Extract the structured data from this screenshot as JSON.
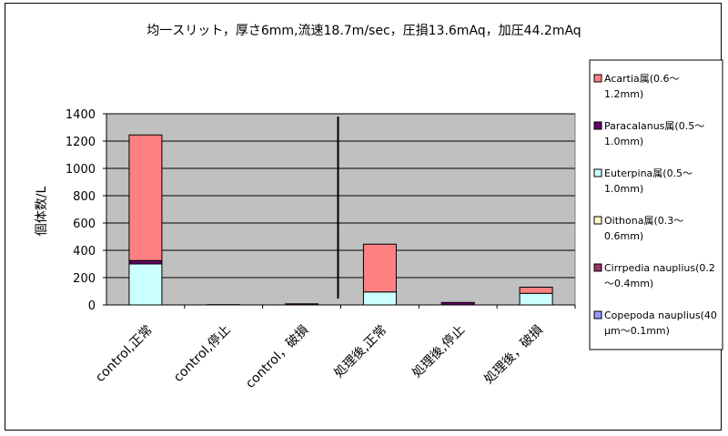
{
  "chart_data": {
    "type": "bar",
    "stacked": true,
    "title": "均一スリット，厚さ6mm,流速18.7m/sec，圧損13.6mAq，加圧44.2mAq",
    "ylabel": "個体数/L",
    "xlabel": "",
    "ylim": [
      0,
      1400
    ],
    "yticks": [
      0,
      200,
      400,
      600,
      800,
      1000,
      1200,
      1400
    ],
    "categories": [
      "control,正常",
      "control,停止",
      "control，破損",
      "処理後,正常",
      "処理後,停止",
      "処理後，破損"
    ],
    "series": [
      {
        "name": "Acartia属(0.6～1.2mm)",
        "color": "#9999ff",
        "values": [
          0,
          0,
          0,
          0,
          0,
          0
        ]
      },
      {
        "name": "Paracalanus属(0.5～1.0mm)",
        "color": "#993366",
        "values": [
          0,
          0,
          0,
          0,
          0,
          0
        ]
      },
      {
        "name": "Euterpina属(0.5～1.0mm)",
        "color": "#ffffcc",
        "values": [
          0,
          0,
          0,
          0,
          0,
          0
        ]
      },
      {
        "name": "Oithona属(0.3～0.6mm)",
        "color": "#ccffff",
        "values": [
          300,
          0,
          0,
          95,
          0,
          85
        ]
      },
      {
        "name": "Cirrpedia nauplius(0.2～0.4mm)",
        "color": "#660066",
        "values": [
          25,
          2,
          8,
          0,
          18,
          0
        ]
      },
      {
        "name": "Copepoda nauplius(40μm～0.1mm)",
        "color": "#ff8080",
        "values": [
          920,
          0,
          0,
          350,
          0,
          45
        ]
      }
    ],
    "legend_lines": [
      [
        "Copepoda nauplius(40",
        "μm～0.1mm)"
      ],
      [
        "Cirrpedia nauplius(0.2",
        "～0.4mm)"
      ],
      [
        "Oithona属(0.3～",
        "0.6mm)"
      ],
      [
        "Euterpina属(0.5～",
        "1.0mm)"
      ],
      [
        "Paracalanus属(0.5～",
        "1.0mm)"
      ],
      [
        "Acartia属(0.6～",
        "1.2mm)"
      ]
    ],
    "legend_order": [
      5,
      4,
      3,
      2,
      1,
      0
    ],
    "legend_position": "right",
    "plot_background": "#c0c0c0",
    "grid": "horizontal",
    "divider_after_category": 2
  }
}
